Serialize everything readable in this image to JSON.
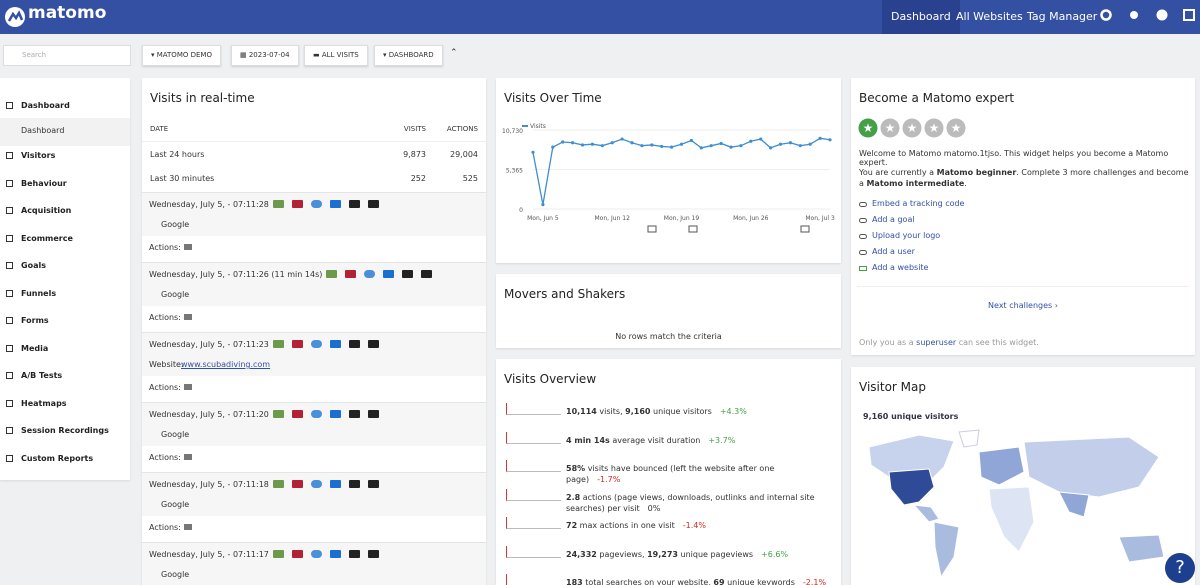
{
  "header": {
    "logo": "matomo",
    "nav": [
      "Dashboard",
      "All Websites",
      "Tag Manager"
    ]
  },
  "toolbar": {
    "search": "Search",
    "buttons": [
      "MATOMO DEMO",
      "2023-07-04",
      "ALL VISITS",
      "DASHBOARD"
    ]
  },
  "sidebar": {
    "items": [
      "Dashboard",
      "Dashboard",
      "Visitors",
      "Behaviour",
      "Acquisition",
      "Ecommerce",
      "Goals",
      "Funnels",
      "Forms",
      "Media",
      "A/B Tests",
      "Heatmaps",
      "Session Recordings",
      "Custom Reports"
    ]
  },
  "realtime": {
    "title": "Visits in real-time",
    "headers": [
      "DATE",
      "VISITS",
      "ACTIONS"
    ],
    "rows": [
      [
        "Last 24 hours",
        "9,873",
        "29,004"
      ],
      [
        "Last 30 minutes",
        "252",
        "525"
      ]
    ],
    "actions_label": "Actions:",
    "visits": [
      {
        "time": "Wednesday, July 5, - 07:11:28",
        "referrer": "Google"
      },
      {
        "time": "Wednesday, July 5, - 07:11:26 (11 min 14s)",
        "referrer": "Google"
      },
      {
        "time": "Wednesday, July 5, - 07:11:23",
        "website_label": "Website:",
        "website": "www.scubadiving.com"
      },
      {
        "time": "Wednesday, July 5, - 07:11:20",
        "referrer": "Google"
      },
      {
        "time": "Wednesday, July 5, - 07:11:18",
        "referrer": "Google"
      },
      {
        "time": "Wednesday, July 5, - 07:11:17",
        "referrer": "Google"
      }
    ]
  },
  "chart_data": {
    "type": "line",
    "title": "Visits Over Time",
    "categories": [
      null,
      "Mon, Jun 5",
      null,
      null,
      null,
      null,
      null,
      null,
      "Mon, Jun 12",
      null,
      null,
      null,
      null,
      null,
      null,
      "Mon, Jun 19",
      null,
      null,
      null,
      null,
      null,
      null,
      "Mon, Jun 26",
      null,
      null,
      null,
      null,
      null,
      null,
      "Mon, Jul 3",
      null
    ],
    "series": [
      {
        "name": "Visits",
        "color": "#3e8ed0",
        "values": [
          7700,
          600,
          8400,
          9100,
          9000,
          8700,
          8800,
          8600,
          9000,
          9500,
          9000,
          8600,
          8700,
          8500,
          8400,
          8800,
          9300,
          8300,
          8600,
          8900,
          8400,
          8600,
          9200,
          9500,
          8300,
          8800,
          9000,
          8600,
          8800,
          9600,
          9400
        ]
      }
    ],
    "ylim": [
      0,
      10730
    ],
    "yticks": [
      0,
      {
        "value": 5365,
        "label": "5,365"
      },
      {
        "value": 10730,
        "label": "10,730"
      }
    ],
    "grid": true
  },
  "movers": {
    "title": "Movers and Shakers",
    "empty": "No rows match the criteria"
  },
  "overview": {
    "title": "Visits Overview",
    "rows": [
      {
        "parts": [
          "10,114",
          " visits, ",
          "9,160",
          " unique visitors"
        ],
        "change": "+4.3%"
      },
      {
        "parts": [
          "4 min 14s",
          " average visit duration"
        ],
        "change": "+3.7%"
      },
      {
        "parts": [
          "58%",
          " visits have bounced (left the website after one page)"
        ],
        "change": "-1.7%"
      },
      {
        "parts": [
          "2.8",
          " actions (page views, downloads, outlinks and internal site searches) per visit"
        ],
        "change": "0%"
      },
      {
        "parts": [
          "72",
          " max actions in one visit"
        ],
        "change": "-1.4%"
      },
      {
        "parts": [
          "24,332",
          " pageviews, ",
          "19,273",
          " unique pageviews"
        ],
        "change": "+6.6%"
      },
      {
        "parts": [
          "183",
          " total searches on your website, ",
          "69",
          " unique keywords"
        ],
        "change": "-2.1%"
      }
    ]
  },
  "expert": {
    "title": "Become a Matomo expert",
    "welcome": "Welcome to Matomo matomo.1tjso. This widget helps you become a Matomo expert.",
    "status": [
      "You are currently a ",
      "Matomo beginner",
      ". Complete 3 more challenges and become a ",
      "Matomo intermediate",
      "."
    ],
    "challenges": [
      "Embed a tracking code",
      "Add a goal",
      "Upload your logo",
      "Add a user",
      "Add a website"
    ],
    "next": "Next challenges ›",
    "footer": [
      "Only you as a ",
      "superuser",
      " can see this widget."
    ]
  },
  "map": {
    "title": "Visitor Map",
    "label": "9,160 unique visitors"
  },
  "help": "?"
}
